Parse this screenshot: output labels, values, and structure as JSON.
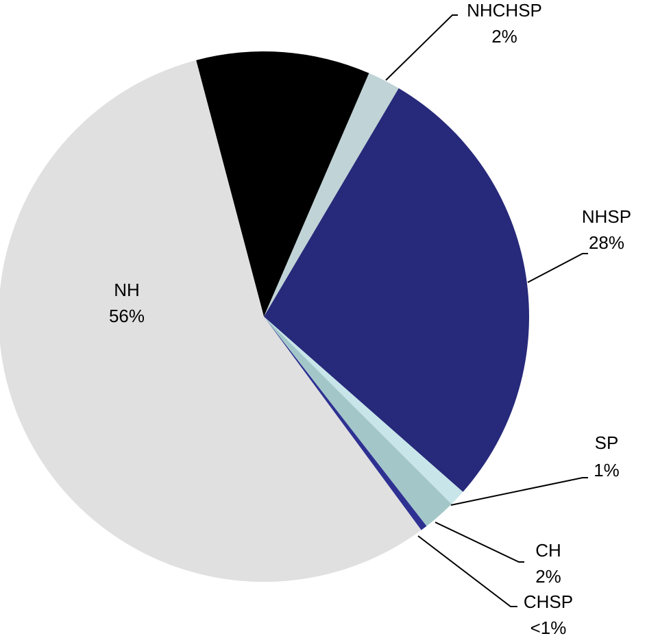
{
  "chart_data": {
    "type": "pie",
    "categories": [
      null,
      "NHCHSP",
      "NHSP",
      "SP",
      "CH",
      "CHSP",
      "NH"
    ],
    "values": [
      10.6,
      2,
      28,
      1,
      2,
      0.4,
      56
    ],
    "value_labels": [
      null,
      "2%",
      "28%",
      "1%",
      "2%",
      "<1%",
      "56%"
    ],
    "colors": [
      "#000000",
      "#c0d3d6",
      "#27297a",
      "#c8e6ea",
      "#a3c7c9",
      "#2e3192",
      "#e0e0e0"
    ]
  }
}
